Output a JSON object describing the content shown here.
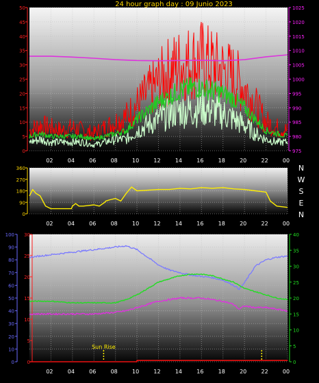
{
  "title": "24 hour graph day : 09 Junio 2023",
  "colors": {
    "title": "#ffd700",
    "wind_axis": "#ff2020",
    "pressure_axis": "#ff22ff",
    "direction_axis": "#ffd700",
    "compass": "#ffffff",
    "humidity_axis": "#6b6bff",
    "temp_axis_left": "#ff2020",
    "temp_axis_right": "#22dd22",
    "gust": "#ff0000",
    "avg": "#22cc22",
    "wind_low": "#ccffcc",
    "pressure": "#dd33dd",
    "direction": "#ffee00",
    "humidity": "#7a7aff",
    "temperature": "#22dd22",
    "dewpoint": "#dd33dd",
    "rain": "#ee1010",
    "sun_marker": "#ffee00"
  },
  "x_ticks": [
    "02",
    "04",
    "06",
    "08",
    "10",
    "12",
    "14",
    "16",
    "18",
    "20",
    "22",
    "00"
  ],
  "compass": [
    "N",
    "W",
    "S",
    "E",
    "N"
  ],
  "sun_rise_label": "Sun Rise",
  "chart_data": [
    {
      "type": "line",
      "panel": "wind-pressure",
      "x_range": [
        0,
        24
      ],
      "y_left": {
        "range": [
          0,
          50
        ],
        "ticks": [
          "0",
          "5",
          "10",
          "15",
          "20",
          "25",
          "30",
          "35",
          "40",
          "45",
          "50"
        ]
      },
      "y_right": {
        "range": [
          975,
          1025
        ],
        "ticks": [
          "975",
          "980",
          "985",
          "990",
          "995",
          "1000",
          "1005",
          "1010",
          "1015",
          "1020",
          "1025"
        ]
      },
      "series": [
        {
          "key": "gust",
          "axis": "left",
          "x": [
            0,
            1,
            2,
            3,
            4,
            5,
            6,
            7,
            8,
            9,
            10,
            11,
            12,
            13,
            14,
            15,
            16,
            17,
            18,
            19,
            20,
            21,
            22,
            23,
            24
          ],
          "y": [
            7,
            9,
            8,
            7,
            8,
            7,
            6,
            8,
            10,
            12,
            16,
            20,
            24,
            28,
            30,
            31,
            32,
            30,
            28,
            26,
            22,
            16,
            10,
            8,
            7
          ]
        },
        {
          "key": "avg",
          "axis": "left",
          "x": [
            0,
            1,
            2,
            3,
            4,
            5,
            6,
            7,
            8,
            9,
            10,
            11,
            12,
            13,
            14,
            15,
            16,
            17,
            18,
            19,
            20,
            21,
            22,
            23,
            24
          ],
          "y": [
            5,
            6,
            5,
            5,
            5,
            5,
            4,
            5,
            6,
            7,
            11,
            14,
            17,
            19,
            21,
            22,
            22,
            21,
            20,
            18,
            15,
            11,
            7,
            6,
            5
          ]
        },
        {
          "key": "wind_low",
          "axis": "left",
          "x": [
            0,
            1,
            2,
            3,
            4,
            5,
            6,
            7,
            8,
            9,
            10,
            11,
            12,
            13,
            14,
            15,
            16,
            17,
            18,
            19,
            20,
            21,
            22,
            23,
            24
          ],
          "y": [
            3,
            4,
            3,
            3,
            3,
            3,
            2,
            3,
            4,
            4,
            7,
            9,
            11,
            13,
            14,
            14,
            15,
            14,
            13,
            11,
            9,
            6,
            4,
            3,
            3
          ]
        },
        {
          "key": "pressure",
          "axis": "right",
          "x": [
            0,
            2,
            4,
            6,
            8,
            10,
            12,
            14,
            16,
            18,
            20,
            22,
            24
          ],
          "y": [
            1008,
            1008,
            1007.7,
            1007.3,
            1006.8,
            1006.5,
            1006.4,
            1006.5,
            1006.6,
            1006.4,
            1006.8,
            1007.8,
            1008.5
          ]
        }
      ]
    },
    {
      "type": "line",
      "panel": "wind-direction",
      "x_range": [
        0,
        24
      ],
      "y_left": {
        "range": [
          0,
          360
        ],
        "ticks": [
          "0",
          "90",
          "180",
          "270",
          "360"
        ]
      },
      "series": [
        {
          "key": "direction",
          "axis": "left",
          "x": [
            0,
            0.3,
            0.6,
            1,
            1.5,
            2,
            3,
            3.9,
            4,
            4.3,
            4.6,
            5,
            6,
            6.5,
            7,
            7.1,
            7.5,
            8,
            8.5,
            9,
            9.5,
            10,
            11,
            12,
            13,
            14,
            15,
            16,
            17,
            18,
            19,
            20,
            21,
            22,
            22.4,
            23,
            24
          ],
          "y": [
            140,
            190,
            160,
            140,
            60,
            40,
            40,
            40,
            60,
            80,
            60,
            60,
            70,
            60,
            90,
            100,
            110,
            120,
            100,
            160,
            210,
            180,
            185,
            190,
            190,
            200,
            195,
            205,
            200,
            205,
            195,
            190,
            180,
            170,
            100,
            60,
            50
          ]
        }
      ]
    },
    {
      "type": "line",
      "panel": "temp-humidity",
      "x_range": [
        0,
        24
      ],
      "y_left": {
        "range": [
          0,
          100
        ],
        "ticks": [
          "0",
          "10",
          "20",
          "30",
          "40",
          "50",
          "60",
          "70",
          "80",
          "90",
          "100"
        ]
      },
      "y_left2": {
        "range": [
          0,
          30
        ],
        "ticks": [
          "0",
          "5",
          "10",
          "15",
          "20",
          "25",
          "30"
        ]
      },
      "y_right": {
        "range": [
          0,
          40
        ],
        "ticks": [
          "0",
          "5",
          "10",
          "15",
          "20",
          "25",
          "30",
          "35",
          "40"
        ]
      },
      "series": [
        {
          "key": "humidity",
          "axis": "left",
          "x": [
            0,
            2,
            4,
            6,
            8,
            9,
            10,
            11,
            12,
            13,
            14,
            15,
            16,
            17,
            18,
            19,
            19.5,
            20,
            21,
            22,
            23,
            24
          ],
          "y": [
            82,
            84,
            86,
            88,
            90,
            91,
            88,
            82,
            76,
            72,
            70,
            68,
            67,
            66,
            64,
            60,
            57,
            62,
            75,
            80,
            82,
            83
          ]
        },
        {
          "key": "temperature",
          "axis": "right",
          "x": [
            0,
            2,
            4,
            6,
            8,
            9,
            10,
            11,
            12,
            13,
            14,
            15,
            16,
            17,
            18,
            19,
            20,
            21,
            22,
            23,
            24
          ],
          "y": [
            19,
            19,
            18.5,
            18.5,
            18.5,
            19.5,
            21,
            23,
            25,
            26,
            27,
            27.5,
            27.5,
            27,
            26,
            25,
            23,
            22,
            21,
            20,
            19.5
          ]
        },
        {
          "key": "dewpoint",
          "axis": "right",
          "x": [
            0,
            2,
            4,
            6,
            8,
            9,
            10,
            11,
            12,
            13,
            14,
            15,
            16,
            17,
            18,
            19,
            19.5,
            20,
            21,
            22,
            23,
            24
          ],
          "y": [
            15,
            15,
            15,
            15,
            15.5,
            16,
            17,
            18,
            19,
            19.5,
            20,
            20,
            20,
            19.5,
            19,
            18,
            16.5,
            17.5,
            17,
            17,
            16.5,
            16
          ]
        },
        {
          "key": "rain",
          "axis": "left",
          "x": [
            0,
            9.5,
            10,
            24
          ],
          "y": [
            0,
            0,
            1,
            1
          ]
        }
      ],
      "markers": [
        {
          "label": "Sun Rise",
          "x": 6.9
        },
        {
          "label": "",
          "x": 21.6
        }
      ]
    }
  ]
}
